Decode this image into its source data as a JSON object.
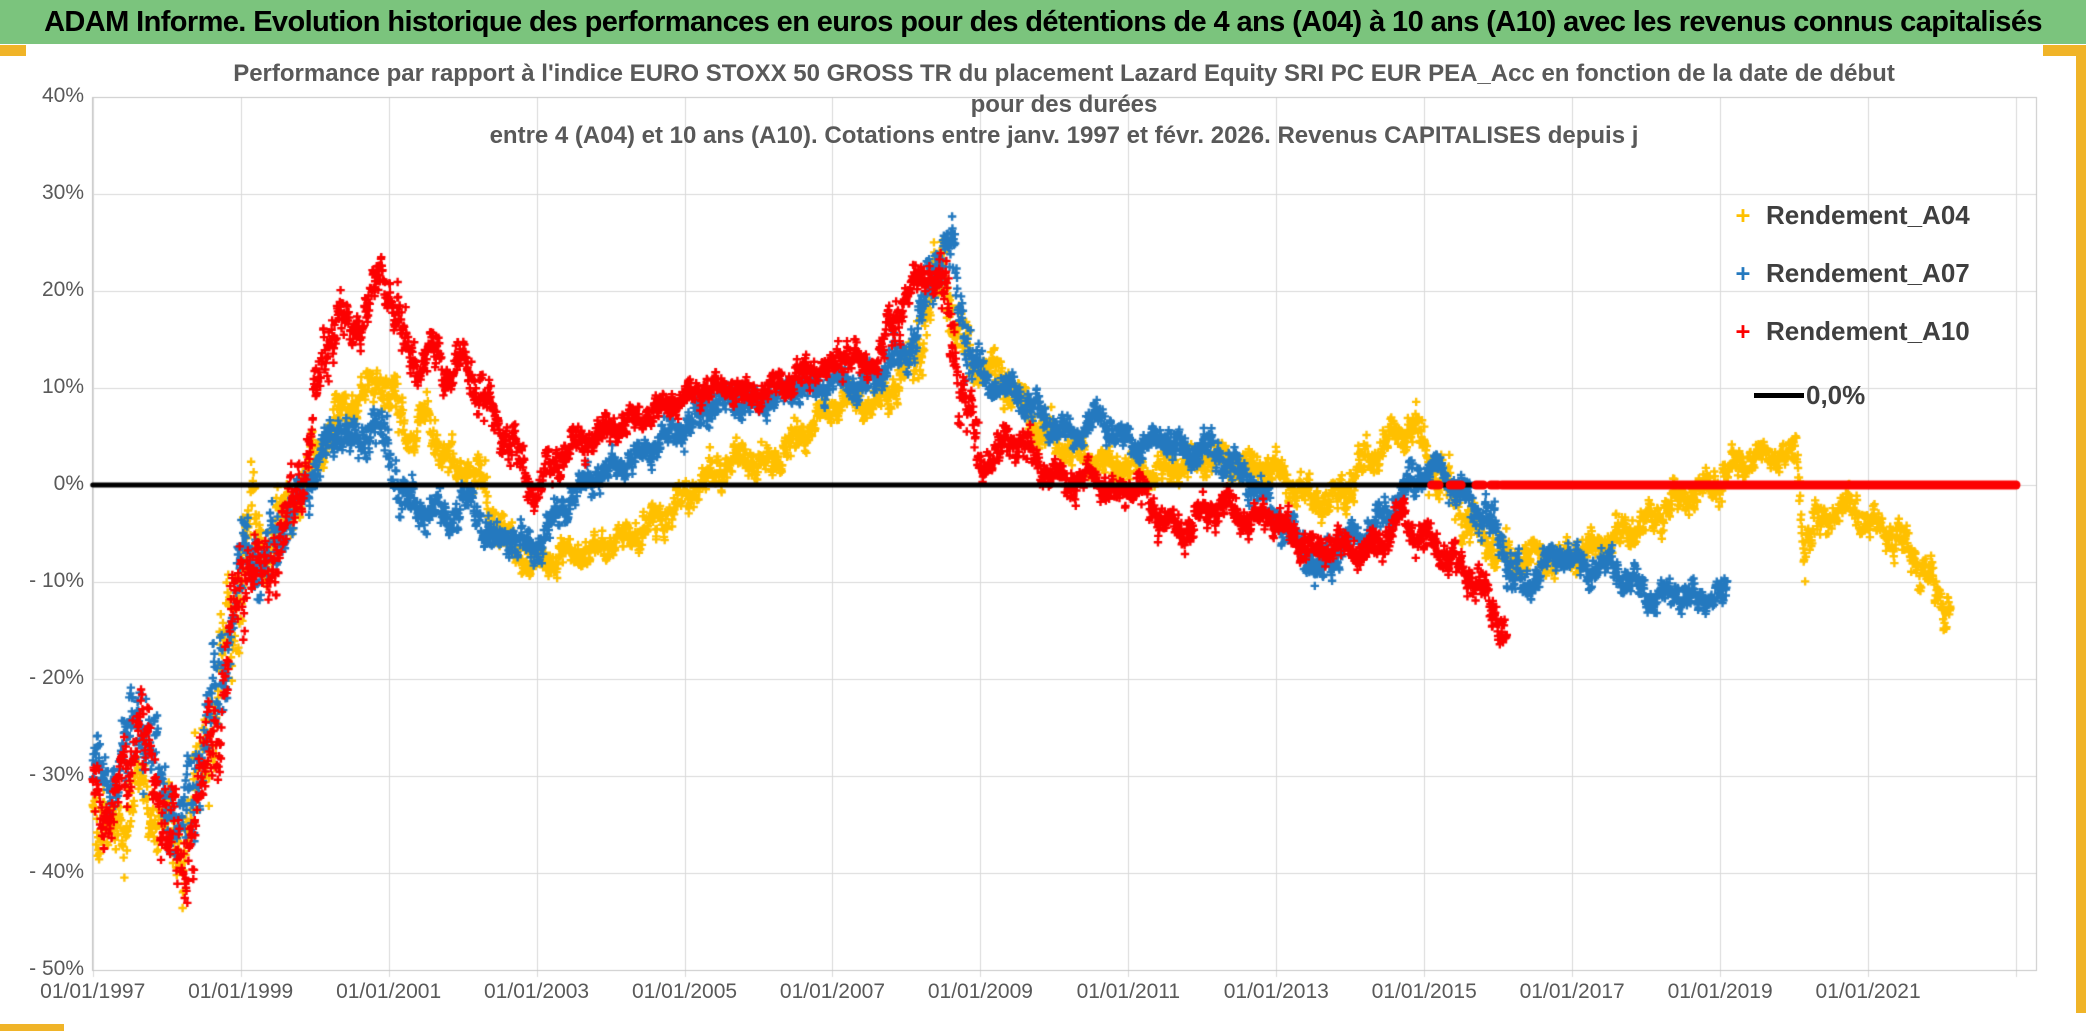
{
  "header": {
    "title": "ADAM Informe. Evolution historique des performances en euros pour des détentions de 4 ans (A04) à 10 ans (A10) avec les revenus connus capitalisés"
  },
  "legend": {
    "position": "right",
    "items": [
      {
        "label": "Rendement_A04",
        "marker": "plus",
        "color": "#FFC000"
      },
      {
        "label": "Rendement_A07",
        "marker": "plus",
        "color": "#2479BF"
      },
      {
        "label": "Rendement_A10",
        "marker": "plus",
        "color": "#FC0101"
      },
      {
        "label": "0,0%",
        "marker": "line",
        "color": "#000000"
      }
    ]
  },
  "colors": {
    "header_bg": "#7BC47D",
    "accent_gold": "#F0B428",
    "grid": "#D9D9D9",
    "plot_border": "#C6C6C6",
    "axis_text": "#595959",
    "title_text": "#595959",
    "legend_text": "#3F3F3F",
    "series_a04": "#FFC000",
    "series_a07": "#2479BF",
    "series_a10": "#FC0101",
    "zero_line": "#000000"
  },
  "chart_data": {
    "type": "scatter",
    "title_lines": [
      "Performance par rapport à l'indice EURO STOXX 50 GROSS TR  du placement Lazard Equity SRI PC EUR PEA_Acc en fonction de la date de début",
      "pour des durées",
      "entre 4 (A04) et 10 ans (A10). Cotations entre janv. 1997 et févr. 2026. Revenus CAPITALISES depuis j"
    ],
    "grid": true,
    "legend_position": "right",
    "x_axis": {
      "domain": [
        1996.99,
        2023.27
      ],
      "tick_years": [
        1997,
        1999,
        2001,
        2003,
        2005,
        2007,
        2009,
        2011,
        2013,
        2015,
        2017,
        2019,
        2021
      ],
      "tick_labels": [
        "01/01/1997",
        "01/01/1999",
        "01/01/2001",
        "01/01/2003",
        "01/01/2005",
        "01/01/2007",
        "01/01/2009",
        "01/01/2011",
        "01/01/2013",
        "01/01/2015",
        "01/01/2017",
        "01/01/2019",
        "01/01/2021"
      ],
      "grid_years": [
        1997,
        1999,
        2001,
        2003,
        2005,
        2007,
        2009,
        2011,
        2013,
        2015,
        2017,
        2019,
        2021,
        2023
      ]
    },
    "y_axis": {
      "domain": [
        -50,
        40
      ],
      "unit": "percent",
      "tick_values": [
        40,
        30,
        20,
        10,
        0,
        -10,
        -20,
        -30,
        -40,
        -50
      ],
      "tick_labels": [
        "40%",
        "30%",
        "20%",
        "10%",
        "0%",
        "- 10%",
        "- 20%",
        "- 30%",
        "- 40%",
        "- 50%"
      ]
    },
    "series": [
      {
        "name": "Rendement_A04",
        "color": "#FFC000",
        "marker": "plus",
        "spread_pct": 1.1,
        "trend": [
          [
            1997.0,
            -32
          ],
          [
            1997.2,
            -36
          ],
          [
            1997.4,
            -35
          ],
          [
            1997.6,
            -31
          ],
          [
            1997.8,
            -33
          ],
          [
            1998.0,
            -35
          ],
          [
            1998.2,
            -38
          ],
          [
            1998.45,
            -30
          ],
          [
            1998.7,
            -20
          ],
          [
            1998.9,
            -14
          ],
          [
            1999.1,
            -3
          ],
          [
            1999.3,
            -7
          ],
          [
            1999.5,
            -4
          ],
          [
            1999.7,
            -2
          ],
          [
            1999.9,
            1
          ],
          [
            2000.1,
            4
          ],
          [
            2000.3,
            7
          ],
          [
            2000.6,
            9
          ],
          [
            2000.9,
            11
          ],
          [
            2001.1,
            8
          ],
          [
            2001.3,
            5
          ],
          [
            2001.5,
            7
          ],
          [
            2001.7,
            4
          ],
          [
            2001.9,
            1
          ],
          [
            2002.1,
            2
          ],
          [
            2002.35,
            -2
          ],
          [
            2002.6,
            -6
          ],
          [
            2002.9,
            -8
          ],
          [
            2003.1,
            -8
          ],
          [
            2003.4,
            -7
          ],
          [
            2003.7,
            -7
          ],
          [
            2004.0,
            -6
          ],
          [
            2004.3,
            -5
          ],
          [
            2004.6,
            -4
          ],
          [
            2004.9,
            -2
          ],
          [
            2005.2,
            0
          ],
          [
            2005.5,
            2
          ],
          [
            2005.8,
            3
          ],
          [
            2006.1,
            2
          ],
          [
            2006.4,
            4
          ],
          [
            2006.7,
            6
          ],
          [
            2007.0,
            8
          ],
          [
            2007.3,
            9
          ],
          [
            2007.6,
            8
          ],
          [
            2007.9,
            11
          ],
          [
            2008.1,
            13
          ],
          [
            2008.35,
            19
          ],
          [
            2008.5,
            23
          ],
          [
            2008.65,
            17
          ],
          [
            2008.9,
            12
          ],
          [
            2009.2,
            12
          ],
          [
            2009.5,
            9
          ],
          [
            2009.8,
            6
          ],
          [
            2010.1,
            4
          ],
          [
            2010.4,
            3
          ],
          [
            2010.7,
            2
          ],
          [
            2011.0,
            2
          ],
          [
            2011.3,
            1
          ],
          [
            2011.6,
            2
          ],
          [
            2011.9,
            2
          ],
          [
            2012.2,
            3
          ],
          [
            2012.5,
            2
          ],
          [
            2012.8,
            2
          ],
          [
            2013.1,
            1
          ],
          [
            2013.4,
            -1
          ],
          [
            2013.7,
            -2
          ],
          [
            2014.0,
            0
          ],
          [
            2014.3,
            3
          ],
          [
            2014.6,
            5
          ],
          [
            2014.85,
            6
          ],
          [
            2015.1,
            2
          ],
          [
            2015.35,
            -1
          ],
          [
            2015.6,
            -4
          ],
          [
            2015.9,
            -6
          ],
          [
            2016.2,
            -8
          ],
          [
            2016.5,
            -7
          ],
          [
            2016.8,
            -8
          ],
          [
            2017.1,
            -7
          ],
          [
            2017.4,
            -6
          ],
          [
            2017.7,
            -5
          ],
          [
            2018.0,
            -4
          ],
          [
            2018.3,
            -2
          ],
          [
            2018.6,
            -1
          ],
          [
            2018.9,
            0
          ],
          [
            2019.2,
            2
          ],
          [
            2019.5,
            3
          ],
          [
            2019.8,
            3
          ],
          [
            2020.02,
            3
          ],
          [
            2020.15,
            -6
          ],
          [
            2020.3,
            -4
          ],
          [
            2020.5,
            -3
          ],
          [
            2020.8,
            -2
          ],
          [
            2021.0,
            -4
          ],
          [
            2021.3,
            -5
          ],
          [
            2021.6,
            -7
          ],
          [
            2021.9,
            -11
          ],
          [
            2022.12,
            -13
          ]
        ]
      },
      {
        "name": "Rendement_A07",
        "color": "#2479BF",
        "marker": "plus",
        "spread_pct": 1.0,
        "trend": [
          [
            1997.0,
            -29
          ],
          [
            1997.2,
            -31
          ],
          [
            1997.45,
            -28
          ],
          [
            1997.6,
            -22
          ],
          [
            1997.8,
            -28
          ],
          [
            1998.0,
            -32
          ],
          [
            1998.2,
            -36
          ],
          [
            1998.45,
            -28
          ],
          [
            1998.7,
            -21
          ],
          [
            1998.9,
            -13
          ],
          [
            1999.1,
            -6
          ],
          [
            1999.3,
            -9
          ],
          [
            1999.5,
            -5
          ],
          [
            1999.7,
            -3
          ],
          [
            1999.9,
            0
          ],
          [
            2000.1,
            3
          ],
          [
            2000.35,
            6
          ],
          [
            2000.6,
            4
          ],
          [
            2000.8,
            7
          ],
          [
            2001.0,
            3
          ],
          [
            2001.2,
            -1
          ],
          [
            2001.4,
            -3
          ],
          [
            2001.6,
            -2
          ],
          [
            2001.8,
            -4
          ],
          [
            2002.0,
            -1
          ],
          [
            2002.2,
            -3
          ],
          [
            2002.45,
            -6
          ],
          [
            2002.7,
            -5
          ],
          [
            2002.95,
            -7
          ],
          [
            2003.2,
            -4
          ],
          [
            2003.5,
            -1
          ],
          [
            2003.8,
            1
          ],
          [
            2004.1,
            2
          ],
          [
            2004.4,
            3
          ],
          [
            2004.7,
            5
          ],
          [
            2005.0,
            6
          ],
          [
            2005.3,
            8
          ],
          [
            2005.6,
            9
          ],
          [
            2005.9,
            8
          ],
          [
            2006.2,
            9
          ],
          [
            2006.5,
            10
          ],
          [
            2006.8,
            10
          ],
          [
            2007.1,
            11
          ],
          [
            2007.4,
            10
          ],
          [
            2007.7,
            12
          ],
          [
            2008.0,
            14
          ],
          [
            2008.2,
            17
          ],
          [
            2008.4,
            23
          ],
          [
            2008.55,
            25
          ],
          [
            2008.7,
            20
          ],
          [
            2008.9,
            13
          ],
          [
            2009.1,
            10
          ],
          [
            2009.4,
            10
          ],
          [
            2009.7,
            8
          ],
          [
            2010.0,
            6
          ],
          [
            2010.3,
            5
          ],
          [
            2010.6,
            7
          ],
          [
            2010.9,
            5
          ],
          [
            2011.2,
            4
          ],
          [
            2011.5,
            5
          ],
          [
            2011.8,
            3
          ],
          [
            2012.1,
            4
          ],
          [
            2012.4,
            2
          ],
          [
            2012.7,
            0
          ],
          [
            2013.0,
            -3
          ],
          [
            2013.3,
            -6
          ],
          [
            2013.6,
            -9
          ],
          [
            2013.9,
            -6
          ],
          [
            2014.2,
            -5
          ],
          [
            2014.5,
            -3
          ],
          [
            2014.9,
            1
          ],
          [
            2015.2,
            2
          ],
          [
            2015.5,
            -1
          ],
          [
            2015.8,
            -3
          ],
          [
            2016.1,
            -7
          ],
          [
            2016.35,
            -11
          ],
          [
            2016.6,
            -8
          ],
          [
            2016.9,
            -7
          ],
          [
            2017.2,
            -9
          ],
          [
            2017.5,
            -8
          ],
          [
            2017.8,
            -10
          ],
          [
            2018.1,
            -12
          ],
          [
            2018.4,
            -11
          ],
          [
            2018.7,
            -12
          ],
          [
            2019.1,
            -11
          ]
        ]
      },
      {
        "name": "Rendement_A10",
        "color": "#FC0101",
        "marker": "plus",
        "spread_pct": 1.0,
        "trend": [
          [
            1997.0,
            -31
          ],
          [
            1997.2,
            -34
          ],
          [
            1997.45,
            -30
          ],
          [
            1997.6,
            -24
          ],
          [
            1997.8,
            -30
          ],
          [
            1998.0,
            -34
          ],
          [
            1998.2,
            -40
          ],
          [
            1998.45,
            -32
          ],
          [
            1998.7,
            -24
          ],
          [
            1998.9,
            -15
          ],
          [
            1999.1,
            -7
          ],
          [
            1999.3,
            -10
          ],
          [
            1999.5,
            -6
          ],
          [
            1999.7,
            -3
          ],
          [
            1999.85,
            2
          ],
          [
            2000.0,
            8
          ],
          [
            2000.15,
            14
          ],
          [
            2000.3,
            18
          ],
          [
            2000.5,
            15
          ],
          [
            2000.7,
            18
          ],
          [
            2000.9,
            22
          ],
          [
            2001.05,
            19
          ],
          [
            2001.2,
            15
          ],
          [
            2001.4,
            12
          ],
          [
            2001.6,
            14
          ],
          [
            2001.8,
            11
          ],
          [
            2002.0,
            13
          ],
          [
            2002.2,
            10
          ],
          [
            2002.4,
            7
          ],
          [
            2002.6,
            5
          ],
          [
            2002.8,
            2
          ],
          [
            2003.0,
            -1
          ],
          [
            2003.2,
            2
          ],
          [
            2003.5,
            4
          ],
          [
            2003.8,
            5
          ],
          [
            2004.1,
            6
          ],
          [
            2004.4,
            7
          ],
          [
            2004.7,
            8
          ],
          [
            2005.0,
            9
          ],
          [
            2005.3,
            10
          ],
          [
            2005.6,
            10
          ],
          [
            2005.9,
            9
          ],
          [
            2006.2,
            10
          ],
          [
            2006.5,
            11
          ],
          [
            2006.8,
            12
          ],
          [
            2007.0,
            12
          ],
          [
            2007.2,
            14
          ],
          [
            2007.4,
            12
          ],
          [
            2007.6,
            13
          ],
          [
            2007.8,
            16
          ],
          [
            2008.0,
            20
          ],
          [
            2008.15,
            21
          ],
          [
            2008.3,
            22
          ],
          [
            2008.45,
            21
          ],
          [
            2008.6,
            16
          ],
          [
            2008.8,
            8
          ],
          [
            2009.0,
            2
          ],
          [
            2009.2,
            3
          ],
          [
            2009.4,
            5
          ],
          [
            2009.6,
            4
          ],
          [
            2009.8,
            2
          ],
          [
            2010.0,
            1
          ],
          [
            2010.2,
            0
          ],
          [
            2010.5,
            1
          ],
          [
            2010.8,
            -1
          ],
          [
            2011.1,
            0
          ],
          [
            2011.4,
            -3
          ],
          [
            2011.7,
            -5
          ],
          [
            2012.0,
            -3
          ],
          [
            2012.3,
            -2
          ],
          [
            2012.6,
            -4
          ],
          [
            2012.9,
            -3
          ],
          [
            2013.2,
            -5
          ],
          [
            2013.5,
            -7
          ],
          [
            2013.8,
            -6
          ],
          [
            2014.1,
            -7
          ],
          [
            2014.4,
            -6
          ],
          [
            2014.7,
            -3
          ],
          [
            2014.9,
            -5
          ],
          [
            2015.1,
            -6
          ],
          [
            2015.4,
            -8
          ],
          [
            2015.7,
            -10
          ],
          [
            2015.9,
            -13
          ],
          [
            2016.12,
            -15
          ]
        ]
      }
    ],
    "zero_line": {
      "label": "0,0%",
      "color": "#000000",
      "value": 0,
      "from": 1997.0,
      "to": 2023.0
    },
    "a10_zero_extension": {
      "color": "#FC0101",
      "value": 0,
      "segments": [
        [
          2015.1,
          2015.2
        ],
        [
          2015.35,
          2015.5
        ],
        [
          2015.7,
          2015.8
        ],
        [
          2015.9,
          2016.0
        ],
        [
          2016.05,
          2023.0
        ]
      ]
    }
  }
}
